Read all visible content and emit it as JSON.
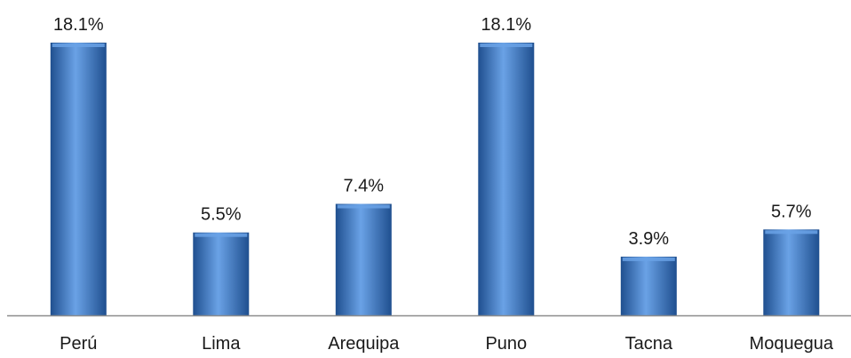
{
  "chart_data": {
    "type": "bar",
    "categories": [
      "Perú",
      "Lima",
      "Arequipa",
      "Puno",
      "Tacna",
      "Moquegua"
    ],
    "values": [
      18.1,
      5.5,
      7.4,
      18.1,
      3.9,
      5.7
    ],
    "data_labels": [
      "18.1%",
      "5.5%",
      "7.4%",
      "18.1%",
      "3.9%",
      "5.7%"
    ],
    "title": "",
    "xlabel": "",
    "ylabel": "",
    "ylim": [
      0,
      18.1
    ],
    "grid": false,
    "legend": "none",
    "bar_color": "#3a78c8",
    "bar_highlight": "#6aa2e6",
    "bar_shadow": "#1f4f8f",
    "axis_color": "#8c8c8c"
  }
}
